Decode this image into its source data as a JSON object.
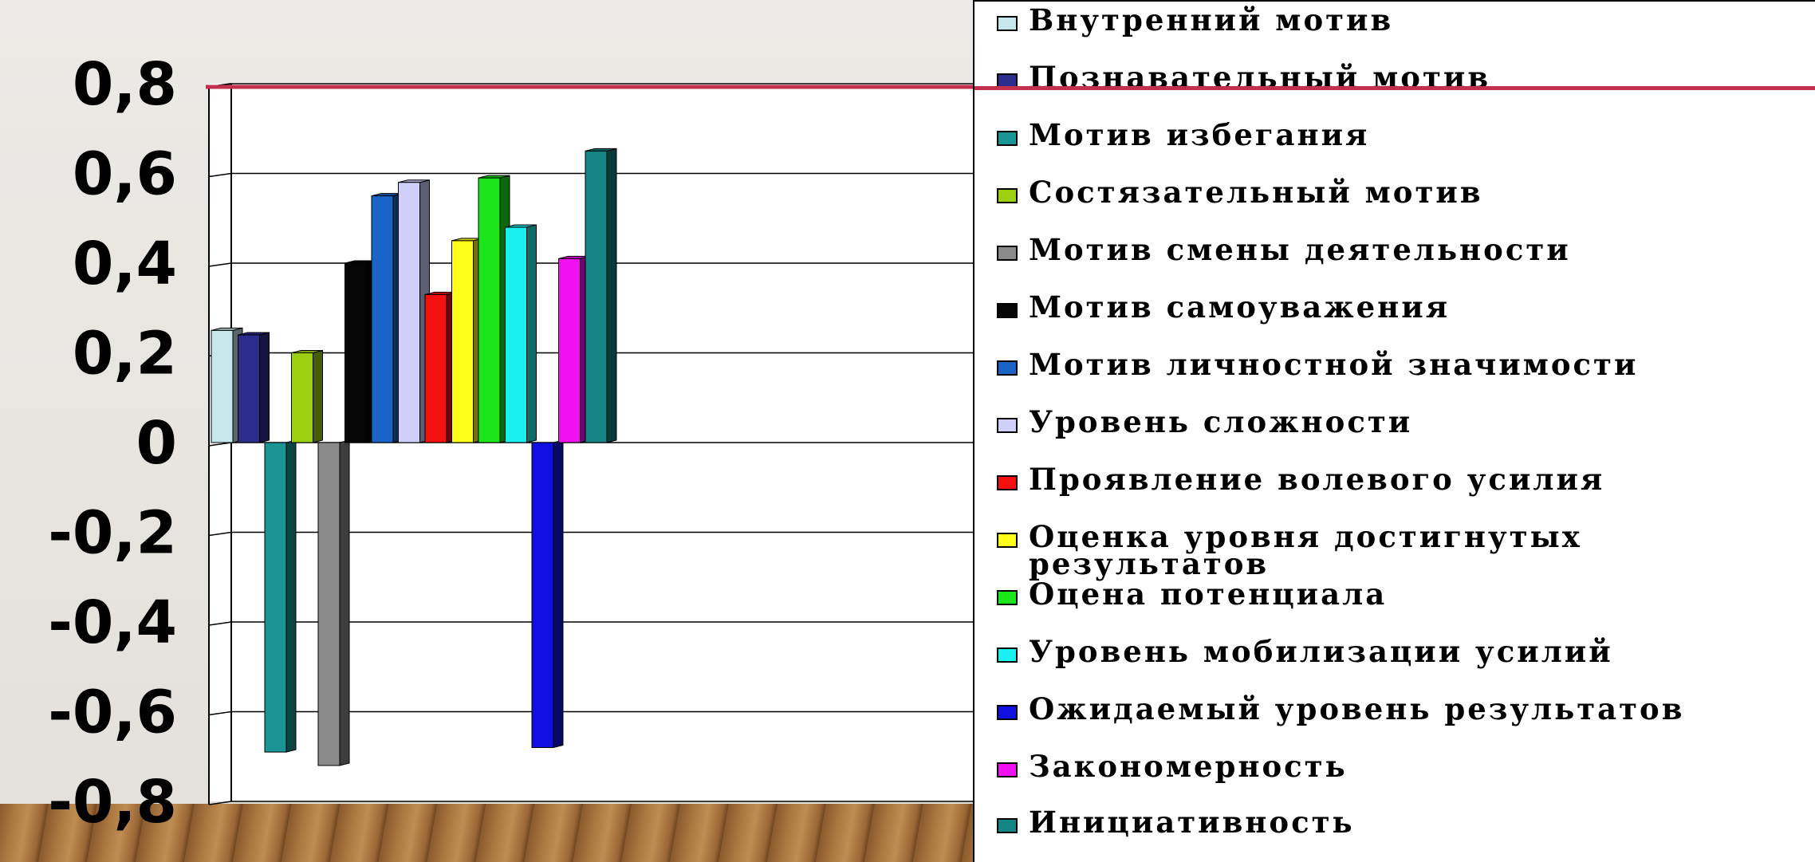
{
  "chart_data": {
    "type": "bar",
    "ylim": [
      -0.8,
      0.8
    ],
    "yticks": [
      "0,8",
      "0,6",
      "0,4",
      "0,2",
      "0",
      "-0,2",
      "-0,4",
      "-0,6",
      "-0,8"
    ],
    "grid": true,
    "legend_position": "right",
    "reference_line": {
      "value": 0.8,
      "color": "#c2304e"
    },
    "series": [
      {
        "name": "Внутренний мотив",
        "value": 0.25,
        "color": "#c6e8ec"
      },
      {
        "name": "Познавательный мотив",
        "value": 0.24,
        "color": "#2c2c8c"
      },
      {
        "name": "Мотив избегания",
        "value": -0.69,
        "color": "#1a9494"
      },
      {
        "name": "Состязательный мотив",
        "value": 0.2,
        "color": "#9ccf10"
      },
      {
        "name": "Мотив смены деятельности",
        "value": -0.72,
        "color": "#8a8a8a"
      },
      {
        "name": "Мотив самоуважения",
        "value": 0.4,
        "color": "#050505"
      },
      {
        "name": "Мотив личностной значимости",
        "value": 0.55,
        "color": "#1a64c8"
      },
      {
        "name": "Уровень сложности",
        "value": 0.58,
        "color": "#cfcffa"
      },
      {
        "name": "Проявление волевого усилия",
        "value": 0.33,
        "color": "#f51010"
      },
      {
        "name": "Оценка уровня достигнутых результатов",
        "value": 0.45,
        "color": "#ffff1a"
      },
      {
        "name": "Оцена потенциала",
        "value": 0.59,
        "color": "#1ae61a"
      },
      {
        "name": "Уровень мобилизации усилий",
        "value": 0.48,
        "color": "#1af0f0"
      },
      {
        "name": "Ожидаемый уровень результатов",
        "value": -0.68,
        "color": "#1010e0"
      },
      {
        "name": "Закономерность",
        "value": 0.41,
        "color": "#f010f0"
      },
      {
        "name": "Инициативность",
        "value": 0.65,
        "color": "#148484"
      }
    ]
  }
}
